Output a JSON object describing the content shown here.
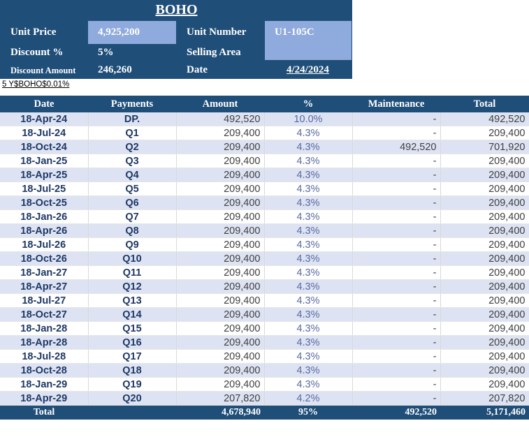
{
  "info": {
    "title": "BOHO",
    "unit_price_label": "Unit Price",
    "unit_price_value": "4,925,200",
    "unit_number_label": "Unit Number",
    "unit_number_value": "U1-105C",
    "discount_pct_label": "Discount %",
    "discount_pct_value": "5%",
    "selling_area_label": "Selling Area",
    "selling_area_value": "",
    "discount_amount_label": "Discount Amount",
    "discount_amount_value": "246,260",
    "date_label": "Date",
    "date_value": "4/24/2024"
  },
  "code_line": "5 Y$BOHO$0.01%",
  "table": {
    "headers": [
      "Date",
      "Payments",
      "Amount",
      "%",
      "Maintenance",
      "Total"
    ],
    "rows": [
      [
        "18-Apr-24",
        "DP.",
        "492,520",
        "10.0%",
        "-",
        "492,520"
      ],
      [
        "18-Jul-24",
        "Q1",
        "209,400",
        "4.3%",
        "-",
        "209,400"
      ],
      [
        "18-Oct-24",
        "Q2",
        "209,400",
        "4.3%",
        "492,520",
        "701,920"
      ],
      [
        "18-Jan-25",
        "Q3",
        "209,400",
        "4.3%",
        "-",
        "209,400"
      ],
      [
        "18-Apr-25",
        "Q4",
        "209,400",
        "4.3%",
        "-",
        "209,400"
      ],
      [
        "18-Jul-25",
        "Q5",
        "209,400",
        "4.3%",
        "-",
        "209,400"
      ],
      [
        "18-Oct-25",
        "Q6",
        "209,400",
        "4.3%",
        "-",
        "209,400"
      ],
      [
        "18-Jan-26",
        "Q7",
        "209,400",
        "4.3%",
        "-",
        "209,400"
      ],
      [
        "18-Apr-26",
        "Q8",
        "209,400",
        "4.3%",
        "-",
        "209,400"
      ],
      [
        "18-Jul-26",
        "Q9",
        "209,400",
        "4.3%",
        "-",
        "209,400"
      ],
      [
        "18-Oct-26",
        "Q10",
        "209,400",
        "4.3%",
        "-",
        "209,400"
      ],
      [
        "18-Jan-27",
        "Q11",
        "209,400",
        "4.3%",
        "-",
        "209,400"
      ],
      [
        "18-Apr-27",
        "Q12",
        "209,400",
        "4.3%",
        "-",
        "209,400"
      ],
      [
        "18-Jul-27",
        "Q13",
        "209,400",
        "4.3%",
        "-",
        "209,400"
      ],
      [
        "18-Oct-27",
        "Q14",
        "209,400",
        "4.3%",
        "-",
        "209,400"
      ],
      [
        "18-Jan-28",
        "Q15",
        "209,400",
        "4.3%",
        "-",
        "209,400"
      ],
      [
        "18-Apr-28",
        "Q16",
        "209,400",
        "4.3%",
        "-",
        "209,400"
      ],
      [
        "18-Jul-28",
        "Q17",
        "209,400",
        "4.3%",
        "-",
        "209,400"
      ],
      [
        "18-Oct-28",
        "Q18",
        "209,400",
        "4.3%",
        "-",
        "209,400"
      ],
      [
        "18-Jan-29",
        "Q19",
        "209,400",
        "4.3%",
        "-",
        "209,400"
      ],
      [
        "18-Apr-29",
        "Q20",
        "207,820",
        "4.2%",
        "-",
        "207,820"
      ]
    ],
    "total_row": [
      "Total",
      "",
      "4,678,940",
      "95%",
      "492,520",
      "5,171,460"
    ]
  },
  "colors": {
    "header_bg": "#1f4e79",
    "value_box": "#8faadc",
    "alt_row": "#dde3f3",
    "date_text": "#1f3864"
  }
}
